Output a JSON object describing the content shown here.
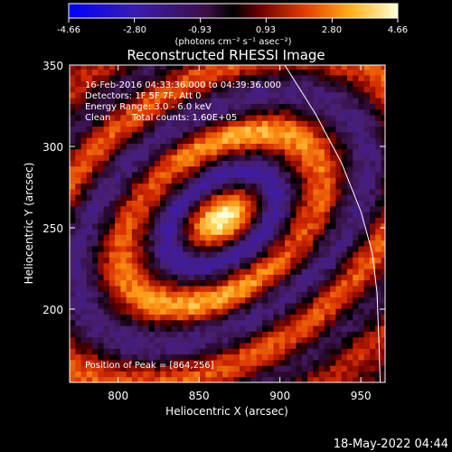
{
  "colorbar": {
    "ticks": [
      "-4.66",
      "-2.80",
      "-0.93",
      "0.93",
      "2.80",
      "4.66"
    ],
    "tick_values": [
      -4.66,
      -2.8,
      -0.93,
      0.93,
      2.8,
      4.66
    ],
    "unit_label": "(photons cm⁻² s⁻¹ asec⁻²)"
  },
  "chart_data": {
    "type": "heatmap",
    "title": "Reconstructed RHESSI Image",
    "xlabel": "Heliocentric X (arcsec)",
    "ylabel": "Heliocentric Y (arcsec)",
    "xlim": [
      770,
      965
    ],
    "ylim": [
      155,
      350
    ],
    "xticks": [
      800,
      850,
      900,
      950
    ],
    "yticks": [
      200,
      250,
      300,
      350
    ],
    "grid": false,
    "value_range": [
      -4.66,
      4.66
    ],
    "colormap": "blue-purple-red-yellow-white",
    "peak": [
      864,
      256
    ],
    "limb_curve": [
      [
        903,
        350
      ],
      [
        922,
        320
      ],
      [
        938,
        290
      ],
      [
        950,
        260
      ],
      [
        957,
        235
      ],
      [
        960,
        210
      ],
      [
        961,
        185
      ],
      [
        962,
        155
      ]
    ],
    "annotations": [
      "16-Feb-2016 04:33:36.000 to 04:39:36.000",
      "Detectors: 1F 5F 7F, Att 0",
      "Energy Range: 3.0 - 6.0 keV",
      "Clean",
      "Total counts: 1.60E+05",
      "Position of Peak = [864,256]"
    ]
  },
  "footer_timestamp": "18-May-2022 04:44"
}
